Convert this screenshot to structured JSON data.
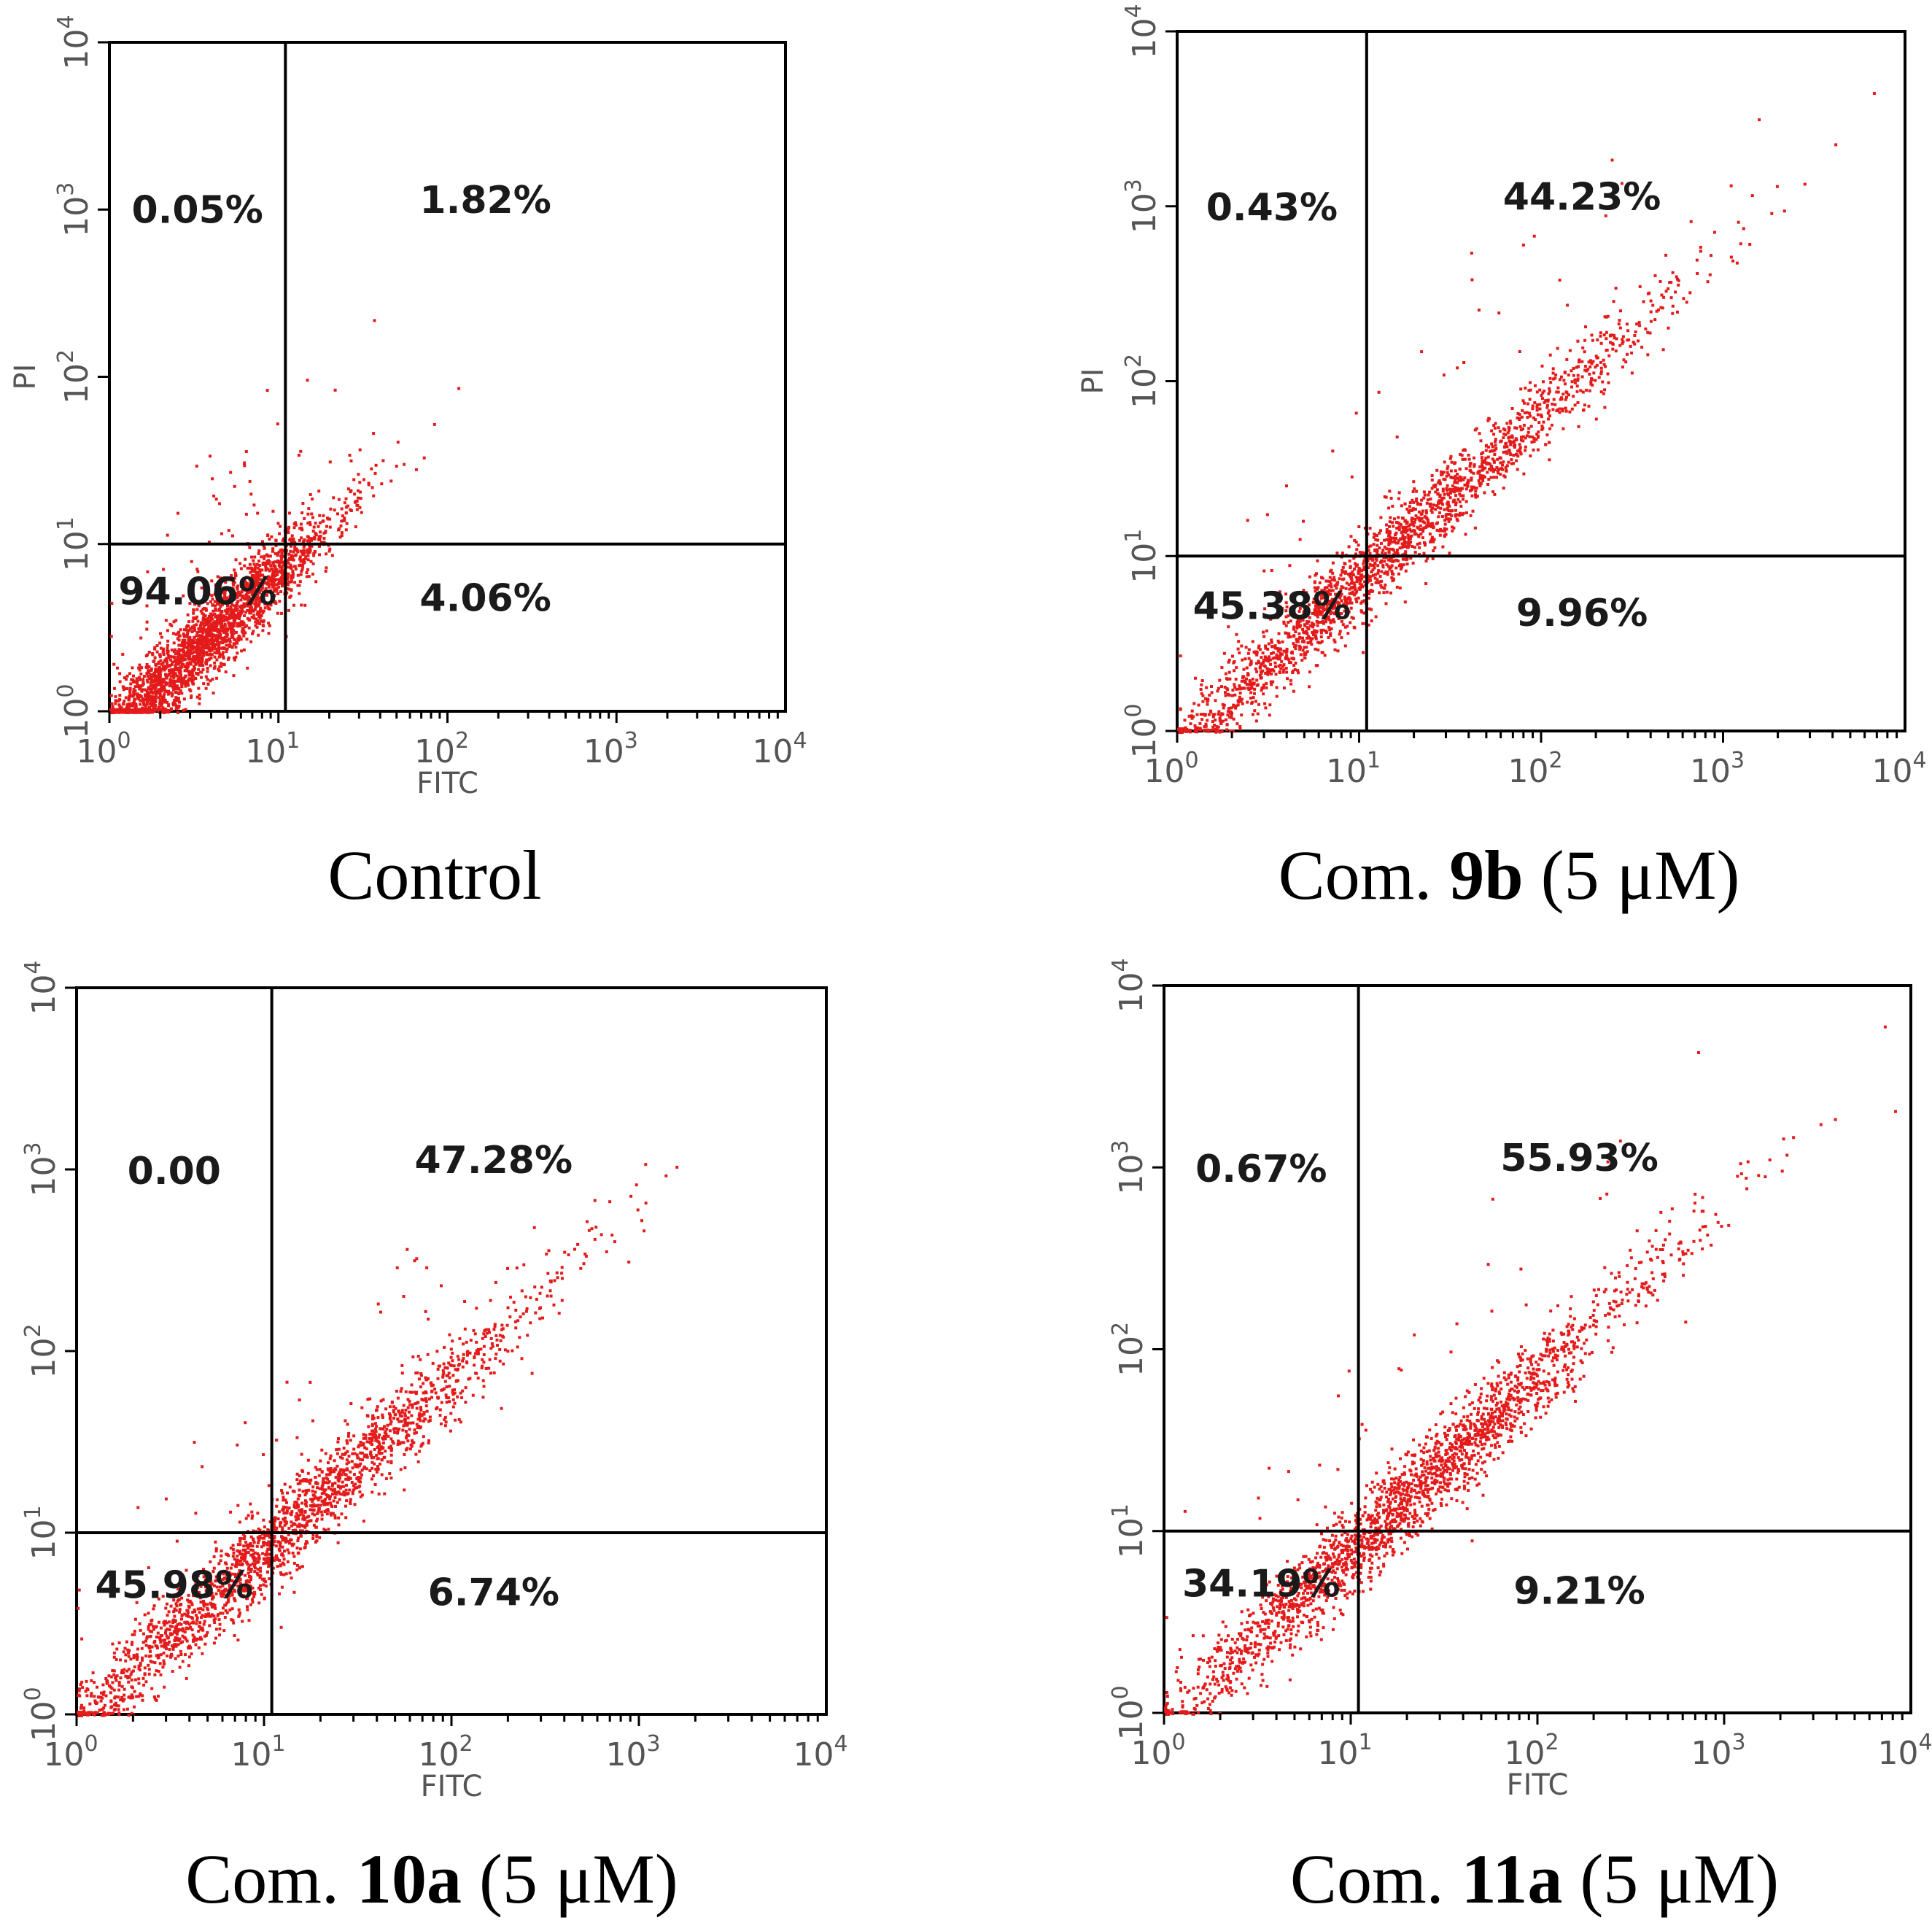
{
  "figure": {
    "accent": "#e41b1b",
    "frame": "#000000",
    "tick_color": "#555555"
  },
  "chart_data": [
    {
      "type": "scatter",
      "title": "",
      "caption": {
        "prefix": "Control",
        "compound": "",
        "suffix": ""
      },
      "xlabel": "FITC",
      "ylabel": "PI",
      "xscale": "log",
      "yscale": "log",
      "xlim": [
        1,
        10000
      ],
      "ylim": [
        1,
        10000
      ],
      "x_ticks": [
        {
          "base": "10",
          "exp": "0"
        },
        {
          "base": "10",
          "exp": "1"
        },
        {
          "base": "10",
          "exp": "2"
        },
        {
          "base": "10",
          "exp": "3"
        },
        {
          "base": "10",
          "exp": "4"
        }
      ],
      "y_ticks": [
        {
          "base": "10",
          "exp": "0"
        },
        {
          "base": "10",
          "exp": "1"
        },
        {
          "base": "10",
          "exp": "2"
        },
        {
          "base": "10",
          "exp": "3"
        },
        {
          "base": "10",
          "exp": "4"
        }
      ],
      "gates": {
        "x": 11,
        "y": 10
      },
      "quadrants": {
        "upper_left": "0.05%",
        "upper_right": "1.82%",
        "lower_left": "94.06%",
        "lower_right": "4.06%"
      },
      "population": {
        "center_x": 3.5,
        "center_y": 2.6,
        "spread_x": 0.4,
        "spread_y": 0.3,
        "slope": 0.95,
        "upper_fraction": 0.02,
        "lower_right_fraction": 0.04
      }
    },
    {
      "type": "scatter",
      "title": "",
      "caption": {
        "prefix": "Com. ",
        "compound": "9b",
        "suffix": " (5 μM)"
      },
      "xlabel": "",
      "ylabel": "PI",
      "xscale": "log",
      "yscale": "log",
      "xlim": [
        1,
        10000
      ],
      "ylim": [
        1,
        10000
      ],
      "x_ticks": [
        {
          "base": "10",
          "exp": "0"
        },
        {
          "base": "10",
          "exp": "1"
        },
        {
          "base": "10",
          "exp": "2"
        },
        {
          "base": "10",
          "exp": "3"
        },
        {
          "base": "10",
          "exp": "4"
        }
      ],
      "y_ticks": [
        {
          "base": "10",
          "exp": "0"
        },
        {
          "base": "10",
          "exp": "1"
        },
        {
          "base": "10",
          "exp": "2"
        },
        {
          "base": "10",
          "exp": "3"
        },
        {
          "base": "10",
          "exp": "4"
        }
      ],
      "gates": {
        "x": 11,
        "y": 10
      },
      "quadrants": {
        "upper_left": "0.43%",
        "upper_right": "44.23%",
        "lower_left": "45.38%",
        "lower_right": "9.96%"
      },
      "population": {
        "center_x": 12,
        "center_y": 9,
        "spread_x": 0.75,
        "spread_y": 0.7,
        "slope": 0.95,
        "upper_fraction": 0.44,
        "lower_right_fraction": 0.1
      }
    },
    {
      "type": "scatter",
      "title": "",
      "caption": {
        "prefix": "Com. ",
        "compound": "10a",
        "suffix": " (5 μM)"
      },
      "xlabel": "FITC",
      "ylabel": "",
      "xscale": "log",
      "yscale": "log",
      "xlim": [
        1,
        10000
      ],
      "ylim": [
        1,
        10000
      ],
      "x_ticks": [
        {
          "base": "10",
          "exp": "0"
        },
        {
          "base": "10",
          "exp": "1"
        },
        {
          "base": "10",
          "exp": "2"
        },
        {
          "base": "10",
          "exp": "3"
        },
        {
          "base": "10",
          "exp": "4"
        }
      ],
      "y_ticks": [
        {
          "base": "10",
          "exp": "0"
        },
        {
          "base": "10",
          "exp": "1"
        },
        {
          "base": "10",
          "exp": "2"
        },
        {
          "base": "10",
          "exp": "3"
        },
        {
          "base": "10",
          "exp": "4"
        }
      ],
      "gates": {
        "x": 11,
        "y": 10
      },
      "quadrants": {
        "upper_left": "0.00",
        "upper_right": "47.28%",
        "lower_left": "45.98%",
        "lower_right": "6.74%"
      },
      "population": {
        "center_x": 11,
        "center_y": 9,
        "spread_x": 0.7,
        "spread_y": 0.65,
        "slope": 0.95,
        "upper_fraction": 0.47,
        "lower_right_fraction": 0.07
      }
    },
    {
      "type": "scatter",
      "title": "",
      "caption": {
        "prefix": "Com. ",
        "compound": "11a",
        "suffix": " (5 μM)"
      },
      "xlabel": "FITC",
      "ylabel": "",
      "xscale": "log",
      "yscale": "log",
      "xlim": [
        1,
        10000
      ],
      "ylim": [
        1,
        10000
      ],
      "x_ticks": [
        {
          "base": "10",
          "exp": "0"
        },
        {
          "base": "10",
          "exp": "1"
        },
        {
          "base": "10",
          "exp": "2"
        },
        {
          "base": "10",
          "exp": "3"
        },
        {
          "base": "10",
          "exp": "4"
        }
      ],
      "y_ticks": [
        {
          "base": "10",
          "exp": "0"
        },
        {
          "base": "10",
          "exp": "1"
        },
        {
          "base": "10",
          "exp": "2"
        },
        {
          "base": "10",
          "exp": "3"
        },
        {
          "base": "10",
          "exp": "4"
        }
      ],
      "gates": {
        "x": 11,
        "y": 10
      },
      "quadrants": {
        "upper_left": "0.67%",
        "upper_right": "55.93%",
        "lower_left": "34.19%",
        "lower_right": "9.21%"
      },
      "population": {
        "center_x": 18,
        "center_y": 14,
        "spread_x": 0.7,
        "spread_y": 0.65,
        "slope": 0.95,
        "upper_fraction": 0.56,
        "lower_right_fraction": 0.09
      }
    }
  ]
}
